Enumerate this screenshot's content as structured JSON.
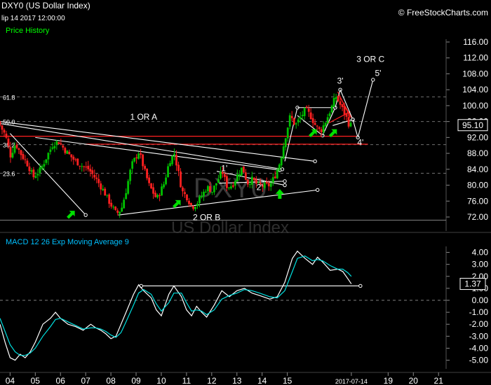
{
  "header": {
    "symbol": "DXY0 (US Dollar Index)",
    "date": "lip 14 2017 12:00:00",
    "source": "© FreeStockCharts.com"
  },
  "watermark": {
    "line1": "DXY0",
    "line2": "US Dollar Index"
  },
  "colors": {
    "background": "#000000",
    "up_candle": "#00c000",
    "down_candle": "#ff2020",
    "price_history_label": "#00ff00",
    "macd_label": "#00c0ff",
    "macd_line": "#ffffff",
    "signal_line": "#00e0e0",
    "fib_line": "#707070",
    "horizontal_red": "#ff2020"
  },
  "chart_data": [
    {
      "type": "candlestick",
      "title": "Price History",
      "ylim": [
        70,
        118
      ],
      "y_ticks": [
        72,
        76,
        80,
        84,
        88,
        92,
        96,
        100,
        104,
        108,
        112,
        116
      ],
      "y_tick_labels": [
        "72.00",
        "76.00",
        "80.00",
        "84.00",
        "88.00",
        "92.00",
        "96.00",
        "100.00",
        "104.00",
        "108.00",
        "112.00",
        "116.00"
      ],
      "last_price": "95.10",
      "last_price_value": 95.1,
      "x_range": [
        2003.6,
        2021.3
      ],
      "x_ticks": [
        2004,
        2005,
        2006,
        2007,
        2008,
        2009,
        2010,
        2011,
        2012,
        2013,
        2014,
        2015,
        2017.54,
        2019,
        2020,
        2021
      ],
      "x_tick_labels": [
        "04",
        "05",
        "06",
        "07",
        "08",
        "09",
        "10",
        "11",
        "12",
        "13",
        "14",
        "15",
        "2017-07-14",
        "19",
        "20",
        "21"
      ],
      "fib_levels": [
        {
          "label": "61.8",
          "value": 102.2
        },
        {
          "label": "50.0",
          "value": 96.0
        },
        {
          "label": "38.2",
          "value": 90.2
        },
        {
          "label": "23.6",
          "value": 83.0
        }
      ],
      "close_path": [
        [
          2003.6,
          96.0
        ],
        [
          2003.9,
          92.5
        ],
        [
          2004.1,
          87.5
        ],
        [
          2004.3,
          90.5
        ],
        [
          2004.5,
          88.0
        ],
        [
          2004.8,
          85.0
        ],
        [
          2005.0,
          82.0
        ],
        [
          2005.3,
          84.0
        ],
        [
          2005.6,
          88.0
        ],
        [
          2005.8,
          90.5
        ],
        [
          2006.0,
          91.0
        ],
        [
          2006.3,
          88.5
        ],
        [
          2006.6,
          86.5
        ],
        [
          2006.9,
          85.0
        ],
        [
          2007.2,
          84.0
        ],
        [
          2007.5,
          81.5
        ],
        [
          2007.8,
          78.5
        ],
        [
          2008.0,
          76.0
        ],
        [
          2008.3,
          72.8
        ],
        [
          2008.5,
          74.0
        ],
        [
          2008.7,
          79.0
        ],
        [
          2008.9,
          85.0
        ],
        [
          2009.2,
          88.5
        ],
        [
          2009.4,
          84.0
        ],
        [
          2009.6,
          80.0
        ],
        [
          2009.9,
          76.5
        ],
        [
          2010.2,
          80.5
        ],
        [
          2010.4,
          86.0
        ],
        [
          2010.6,
          88.0
        ],
        [
          2010.8,
          82.0
        ],
        [
          2010.9,
          78.5
        ],
        [
          2011.1,
          77.0
        ],
        [
          2011.3,
          74.5
        ],
        [
          2011.5,
          75.5
        ],
        [
          2011.7,
          77.5
        ],
        [
          2011.9,
          79.5
        ],
        [
          2012.1,
          78.5
        ],
        [
          2012.3,
          81.0
        ],
        [
          2012.5,
          83.5
        ],
        [
          2012.7,
          79.5
        ],
        [
          2012.9,
          80.0
        ],
        [
          2013.1,
          82.5
        ],
        [
          2013.3,
          84.5
        ],
        [
          2013.5,
          80.5
        ],
        [
          2013.7,
          81.5
        ],
        [
          2013.9,
          80.0
        ],
        [
          2014.1,
          79.8
        ],
        [
          2014.4,
          80.0
        ],
        [
          2014.6,
          82.5
        ],
        [
          2014.8,
          86.0
        ],
        [
          2015.0,
          92.0
        ],
        [
          2015.2,
          97.5
        ],
        [
          2015.4,
          95.0
        ],
        [
          2015.6,
          97.0
        ],
        [
          2015.8,
          99.0
        ],
        [
          2016.0,
          97.5
        ],
        [
          2016.2,
          95.0
        ],
        [
          2016.4,
          93.5
        ],
        [
          2016.6,
          96.0
        ],
        [
          2016.9,
          100.5
        ],
        [
          2017.0,
          102.5
        ],
        [
          2017.2,
          100.0
        ],
        [
          2017.4,
          97.5
        ],
        [
          2017.54,
          95.1
        ]
      ],
      "trend_lines": [
        {
          "from": [
            2003.6,
            95.5
          ],
          "to": [
            2014.8,
            84.0
          ]
        },
        {
          "from": [
            2003.6,
            96.0
          ],
          "to": [
            2016.1,
            86.0
          ]
        },
        {
          "from": [
            2005.0,
            92.0
          ],
          "to": [
            2014.7,
            83.8
          ]
        },
        {
          "from": [
            2004.0,
            93.0
          ],
          "to": [
            2007.0,
            72.5
          ]
        },
        {
          "from": [
            2008.3,
            72.5
          ],
          "to": [
            2016.2,
            78.8
          ]
        },
        {
          "from": [
            2012.3,
            80.5
          ],
          "to": [
            2014.9,
            81.0
          ]
        },
        {
          "from": [
            2012.2,
            83.5
          ],
          "to": [
            2014.9,
            80.0
          ]
        },
        {
          "from": [
            2014.9,
            86.0
          ],
          "to": [
            2015.4,
            99.5
          ]
        },
        {
          "from": [
            2015.4,
            99.5
          ],
          "to": [
            2016.9,
            99.5
          ]
        },
        {
          "from": [
            2015.4,
            97.5
          ],
          "to": [
            2016.4,
            92.5
          ]
        },
        {
          "from": [
            2016.4,
            92.5
          ],
          "to": [
            2016.9,
            99.5
          ]
        },
        {
          "from": [
            2016.9,
            99.5
          ],
          "to": [
            2017.1,
            104.0
          ]
        },
        {
          "from": [
            2017.1,
            104.0
          ],
          "to": [
            2017.6,
            96.5
          ]
        },
        {
          "from": [
            2016.8,
            95.0
          ],
          "to": [
            2017.6,
            96.5
          ]
        },
        {
          "from": [
            2017.6,
            96.5
          ],
          "to": [
            2017.8,
            92.0
          ]
        },
        {
          "from": [
            2017.8,
            92.0
          ],
          "to": [
            2018.4,
            106.5
          ]
        }
      ],
      "red_lines": [
        {
          "from": [
            2003.6,
            92.3
          ],
          "to": [
            2017.8,
            92.3
          ]
        },
        {
          "from": [
            2007.0,
            90.3
          ],
          "to": [
            2018.2,
            90.3
          ]
        },
        {
          "from": [
            2016.6,
            95.5
          ],
          "to": [
            2017.5,
            98.5
          ]
        },
        {
          "from": [
            2017.0,
            103.5
          ],
          "to": [
            2017.5,
            97.0
          ]
        },
        {
          "from": [
            2017.1,
            102.0
          ],
          "to": [
            2017.6,
            96.5
          ]
        }
      ],
      "annotations": [
        {
          "text": "1 OR A",
          "x": 2009.3,
          "y": 96.5
        },
        {
          "text": "1'",
          "x": 2012.5,
          "y": 83.5
        },
        {
          "text": "2'",
          "x": 2013.9,
          "y": 78.8
        },
        {
          "text": "2 OR B",
          "x": 2011.8,
          "y": 71.2
        },
        {
          "text": "3'",
          "x": 2017.1,
          "y": 105.5
        },
        {
          "text": "4'",
          "x": 2017.9,
          "y": 90.0
        },
        {
          "text": "3 OR C",
          "x": 2018.3,
          "y": 111.0
        },
        {
          "text": "5'",
          "x": 2018.6,
          "y": 107.5
        }
      ],
      "arrows": [
        {
          "x": 2006.4,
          "y": 72.5,
          "dir": "ne"
        },
        {
          "x": 2010.6,
          "y": 75.2,
          "dir": "ne"
        },
        {
          "x": 2014.7,
          "y": 77.8,
          "dir": "up"
        },
        {
          "x": 2016.0,
          "y": 93.0,
          "dir": "ne"
        },
        {
          "x": 2016.8,
          "y": 93.0,
          "dir": "ne"
        }
      ]
    },
    {
      "type": "line",
      "title": "MACD 12 26  Exp Moving Average 9",
      "ylim": [
        -5.6,
        4.8
      ],
      "y_ticks": [
        4,
        3,
        2,
        1,
        0,
        -1,
        -2,
        -3,
        -4,
        -5
      ],
      "y_tick_labels": [
        "4.00",
        "3.00",
        "2.00",
        "1.00",
        "0.00",
        "-1.00",
        "-2.00",
        "-3.00",
        "-4.00",
        "-5.00"
      ],
      "last_value": "1.37",
      "last_value_num": 1.37,
      "series": [
        {
          "values": [
            [
              2003.6,
              -2.0
            ],
            [
              2003.8,
              -3.5
            ],
            [
              2004.0,
              -4.8
            ],
            [
              2004.2,
              -5.0
            ],
            [
              2004.4,
              -4.5
            ],
            [
              2004.6,
              -4.8
            ],
            [
              2004.8,
              -4.3
            ],
            [
              2005.0,
              -3.5
            ],
            [
              2005.3,
              -2.0
            ],
            [
              2005.6,
              -1.5
            ],
            [
              2005.8,
              -1.0
            ],
            [
              2006.0,
              -1.5
            ],
            [
              2006.3,
              -2.0
            ],
            [
              2006.6,
              -2.2
            ],
            [
              2006.9,
              -2.5
            ],
            [
              2007.2,
              -2.0
            ],
            [
              2007.4,
              -2.3
            ],
            [
              2007.6,
              -2.5
            ],
            [
              2007.8,
              -2.8
            ],
            [
              2008.0,
              -3.2
            ],
            [
              2008.2,
              -3.0
            ],
            [
              2008.4,
              -2.0
            ],
            [
              2008.6,
              -1.0
            ],
            [
              2008.9,
              0.5
            ],
            [
              2009.1,
              1.3
            ],
            [
              2009.3,
              0.8
            ],
            [
              2009.6,
              0.2
            ],
            [
              2009.8,
              -0.8
            ],
            [
              2010.0,
              -1.3
            ],
            [
              2010.3,
              0.5
            ],
            [
              2010.5,
              1.2
            ],
            [
              2010.8,
              0.3
            ],
            [
              2011.0,
              -0.8
            ],
            [
              2011.2,
              -1.3
            ],
            [
              2011.4,
              -0.5
            ],
            [
              2011.6,
              -1.0
            ],
            [
              2011.8,
              -1.4
            ],
            [
              2012.1,
              -0.4
            ],
            [
              2012.4,
              0.8
            ],
            [
              2012.7,
              0.3
            ],
            [
              2013.0,
              0.8
            ],
            [
              2013.3,
              1.0
            ],
            [
              2013.6,
              0.6
            ],
            [
              2013.9,
              0.4
            ],
            [
              2014.3,
              0.1
            ],
            [
              2014.6,
              0.3
            ],
            [
              2014.9,
              1.5
            ],
            [
              2015.2,
              3.5
            ],
            [
              2015.4,
              4.1
            ],
            [
              2015.7,
              3.5
            ],
            [
              2016.0,
              3.0
            ],
            [
              2016.2,
              3.6
            ],
            [
              2016.4,
              3.2
            ],
            [
              2016.7,
              2.5
            ],
            [
              2017.0,
              2.6
            ],
            [
              2017.2,
              2.4
            ],
            [
              2017.4,
              1.8
            ],
            [
              2017.54,
              1.37
            ]
          ]
        },
        {
          "values": [
            [
              2003.6,
              -1.5
            ],
            [
              2003.8,
              -2.6
            ],
            [
              2004.0,
              -3.7
            ],
            [
              2004.2,
              -4.3
            ],
            [
              2004.4,
              -4.6
            ],
            [
              2004.6,
              -4.6
            ],
            [
              2004.8,
              -4.4
            ],
            [
              2005.0,
              -4.0
            ],
            [
              2005.3,
              -3.0
            ],
            [
              2005.6,
              -2.2
            ],
            [
              2005.8,
              -1.6
            ],
            [
              2006.0,
              -1.5
            ],
            [
              2006.3,
              -1.8
            ],
            [
              2006.6,
              -2.1
            ],
            [
              2006.9,
              -2.4
            ],
            [
              2007.2,
              -2.3
            ],
            [
              2007.4,
              -2.3
            ],
            [
              2007.6,
              -2.4
            ],
            [
              2007.8,
              -2.6
            ],
            [
              2008.0,
              -2.9
            ],
            [
              2008.2,
              -3.1
            ],
            [
              2008.4,
              -2.7
            ],
            [
              2008.6,
              -1.8
            ],
            [
              2008.9,
              -0.4
            ],
            [
              2009.1,
              0.6
            ],
            [
              2009.3,
              0.9
            ],
            [
              2009.6,
              0.5
            ],
            [
              2009.8,
              -0.3
            ],
            [
              2010.0,
              -0.9
            ],
            [
              2010.3,
              -0.2
            ],
            [
              2010.5,
              0.6
            ],
            [
              2010.8,
              0.6
            ],
            [
              2011.0,
              -0.2
            ],
            [
              2011.2,
              -0.9
            ],
            [
              2011.4,
              -0.8
            ],
            [
              2011.6,
              -0.9
            ],
            [
              2011.8,
              -1.2
            ],
            [
              2012.1,
              -0.8
            ],
            [
              2012.4,
              0.1
            ],
            [
              2012.7,
              0.4
            ],
            [
              2013.0,
              0.6
            ],
            [
              2013.3,
              0.9
            ],
            [
              2013.6,
              0.8
            ],
            [
              2013.9,
              0.6
            ],
            [
              2014.3,
              0.3
            ],
            [
              2014.6,
              0.2
            ],
            [
              2014.9,
              0.8
            ],
            [
              2015.2,
              2.4
            ],
            [
              2015.4,
              3.5
            ],
            [
              2015.7,
              3.7
            ],
            [
              2016.0,
              3.3
            ],
            [
              2016.2,
              3.4
            ],
            [
              2016.4,
              3.3
            ],
            [
              2016.7,
              2.9
            ],
            [
              2017.0,
              2.6
            ],
            [
              2017.2,
              2.6
            ],
            [
              2017.4,
              2.3
            ],
            [
              2017.54,
              2.0
            ]
          ]
        }
      ],
      "trend_line": {
        "from": [
          2009.2,
          1.2
        ],
        "to": [
          2017.9,
          1.2
        ]
      }
    }
  ]
}
